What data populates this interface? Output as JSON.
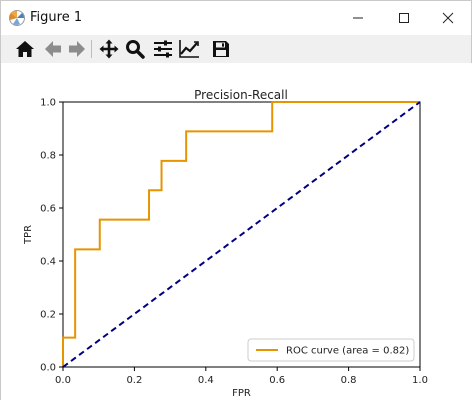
{
  "window": {
    "title": "Figure 1"
  },
  "toolbar": {
    "buttons": [
      {
        "name": "home-icon"
      },
      {
        "name": "back-arrow-icon"
      },
      {
        "name": "forward-arrow-icon"
      },
      {
        "name": "pan-icon"
      },
      {
        "name": "zoom-icon"
      },
      {
        "name": "configure-subplots-icon"
      },
      {
        "name": "edit-axis-icon"
      },
      {
        "name": "save-icon"
      }
    ]
  },
  "chart_data": {
    "type": "line",
    "title": "Precision-Recall",
    "xlabel": "FPR",
    "ylabel": "TPR",
    "xlim": [
      0.0,
      1.0
    ],
    "ylim": [
      0.0,
      1.0
    ],
    "xticks": [
      "0.0",
      "0.2",
      "0.4",
      "0.6",
      "0.8",
      "1.0"
    ],
    "yticks": [
      "0.0",
      "0.2",
      "0.4",
      "0.6",
      "0.8",
      "1.0"
    ],
    "grid": false,
    "legend_position": "lower-right",
    "series": [
      {
        "name": "ROC curve (area = 0.82)",
        "color": "#e69500",
        "style": "solid",
        "x": [
          0.0,
          0.0,
          0.034,
          0.034,
          0.103,
          0.103,
          0.241,
          0.241,
          0.276,
          0.276,
          0.345,
          0.345,
          0.586,
          0.586,
          1.0
        ],
        "y": [
          0.0,
          0.111,
          0.111,
          0.444,
          0.444,
          0.556,
          0.556,
          0.667,
          0.667,
          0.778,
          0.778,
          0.889,
          0.889,
          1.0,
          1.0
        ]
      },
      {
        "color": "#000080",
        "style": "dashed",
        "x": [
          0.0,
          1.0
        ],
        "y": [
          0.0,
          1.0
        ]
      }
    ]
  }
}
